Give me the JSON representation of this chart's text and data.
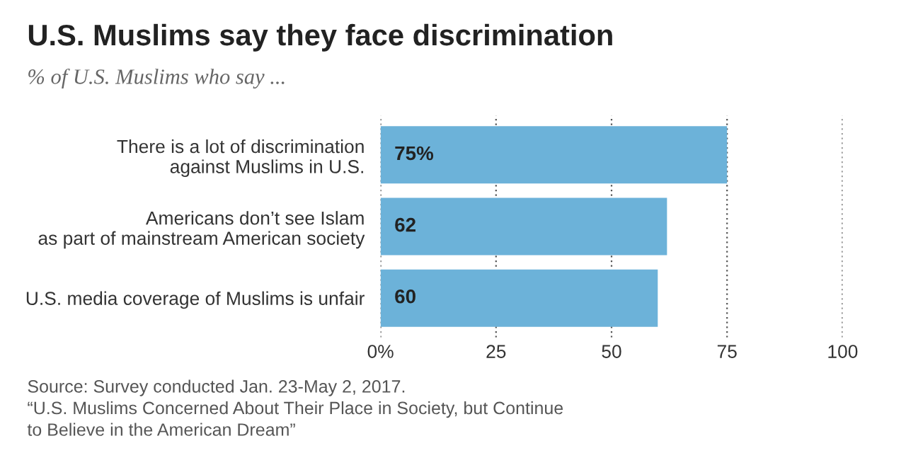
{
  "chart_data": {
    "type": "bar",
    "orientation": "horizontal",
    "title": "U.S. Muslims say they face discrimination",
    "subtitle": "% of U.S. Muslims who say ...",
    "categories": [
      "There is a lot of discrimination\nagainst Muslims in U.S.",
      "Americans don’t see Islam\nas part of mainstream American society",
      "U.S. media coverage of Muslims is unfair"
    ],
    "values": [
      75,
      62,
      60
    ],
    "value_labels": [
      "75%",
      "62",
      "60"
    ],
    "color": "#6cb2d9",
    "xlim": [
      0,
      100
    ],
    "xticks": [
      {
        "value": 0,
        "label": "0%"
      },
      25,
      50,
      75,
      100
    ],
    "grid": "x",
    "annotations": [
      "Source: Survey conducted Jan. 23-May 2, 2017.\n“U.S. Muslims Concerned About Their Place in Society, but Continue\nto Believe in the American Dream”"
    ]
  }
}
